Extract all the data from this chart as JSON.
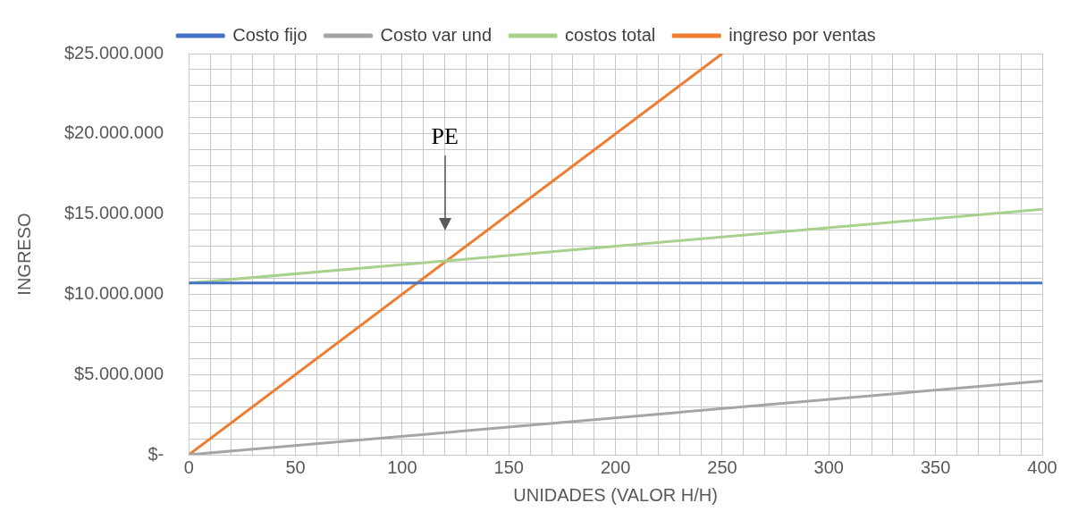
{
  "chart_data": {
    "type": "line",
    "xlabel": "UNIDADES (VALOR H/H)",
    "ylabel": "INGRESO",
    "xlim": [
      0,
      400
    ],
    "xticks": [
      0,
      {
        "value": 10,
        "label": null
      },
      {
        "value": 20,
        "label": null
      },
      {
        "value": 30,
        "label": null
      },
      {
        "value": 40,
        "label": null
      },
      50,
      {
        "value": 60,
        "label": null
      },
      {
        "value": 70,
        "label": null
      },
      {
        "value": 80,
        "label": null
      },
      {
        "value": 90,
        "label": null
      },
      100,
      {
        "value": 110,
        "label": null
      },
      {
        "value": 120,
        "label": null
      },
      {
        "value": 130,
        "label": null
      },
      {
        "value": 140,
        "label": null
      },
      150,
      {
        "value": 160,
        "label": null
      },
      {
        "value": 170,
        "label": null
      },
      {
        "value": 180,
        "label": null
      },
      {
        "value": 190,
        "label": null
      },
      200,
      {
        "value": 210,
        "label": null
      },
      {
        "value": 220,
        "label": null
      },
      {
        "value": 230,
        "label": null
      },
      {
        "value": 240,
        "label": null
      },
      250,
      {
        "value": 260,
        "label": null
      },
      {
        "value": 270,
        "label": null
      },
      {
        "value": 280,
        "label": null
      },
      {
        "value": 290,
        "label": null
      },
      300,
      {
        "value": 310,
        "label": null
      },
      {
        "value": 320,
        "label": null
      },
      {
        "value": 330,
        "label": null
      },
      {
        "value": 340,
        "label": null
      },
      350,
      {
        "value": 360,
        "label": null
      },
      {
        "value": 370,
        "label": null
      },
      {
        "value": 380,
        "label": null
      },
      {
        "value": 390,
        "label": null
      },
      400
    ],
    "ylim": [
      0,
      25000000
    ],
    "yticks": [
      {
        "value": 0,
        "label": "$-"
      },
      {
        "value": 1000000,
        "label": null
      },
      {
        "value": 2000000,
        "label": null
      },
      {
        "value": 3000000,
        "label": null
      },
      {
        "value": 4000000,
        "label": null
      },
      {
        "value": 5000000,
        "label": "$5.000.000"
      },
      {
        "value": 6000000,
        "label": null
      },
      {
        "value": 7000000,
        "label": null
      },
      {
        "value": 8000000,
        "label": null
      },
      {
        "value": 9000000,
        "label": null
      },
      {
        "value": 10000000,
        "label": "$10.000.000"
      },
      {
        "value": 11000000,
        "label": null
      },
      {
        "value": 12000000,
        "label": null
      },
      {
        "value": 13000000,
        "label": null
      },
      {
        "value": 14000000,
        "label": null
      },
      {
        "value": 15000000,
        "label": "$15.000.000"
      },
      {
        "value": 16000000,
        "label": null
      },
      {
        "value": 17000000,
        "label": null
      },
      {
        "value": 18000000,
        "label": null
      },
      {
        "value": 19000000,
        "label": null
      },
      {
        "value": 20000000,
        "label": "$20.000.000"
      },
      {
        "value": 21000000,
        "label": null
      },
      {
        "value": 22000000,
        "label": null
      },
      {
        "value": 23000000,
        "label": null
      },
      {
        "value": 24000000,
        "label": null
      },
      {
        "value": 25000000,
        "label": "$25.000.000"
      }
    ],
    "grid": true,
    "legend": "top",
    "marker": "none",
    "line_style": "solid",
    "series": [
      {
        "name": "Costo fijo",
        "color": "#4472c4",
        "x": [
          0,
          400
        ],
        "values": [
          10700000,
          10700000
        ]
      },
      {
        "name": "Costo var und",
        "color": "#a5a5a5",
        "x": [
          0,
          400
        ],
        "values": [
          0,
          4600000
        ]
      },
      {
        "name": "costos total",
        "color": "#a9d18e",
        "x": [
          0,
          400
        ],
        "values": [
          10700000,
          15300000
        ]
      },
      {
        "name": "ingreso por ventas",
        "color": "#ed7d31",
        "x": [
          0,
          250
        ],
        "values": [
          0,
          25000000
        ]
      }
    ],
    "annotations": [
      "PE"
    ]
  }
}
